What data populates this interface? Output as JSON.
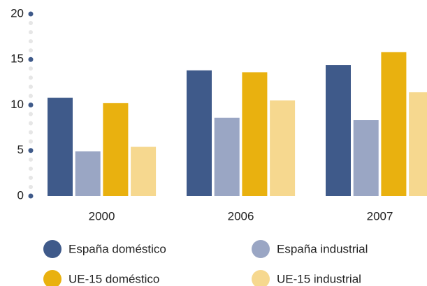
{
  "chart_data": {
    "type": "bar",
    "categories": [
      "2000",
      "2006",
      "2007"
    ],
    "series": [
      {
        "name": "España doméstico",
        "color": "#3f5a8a",
        "values": [
          10.8,
          13.8,
          14.4
        ]
      },
      {
        "name": "España industrial",
        "color": "#9aa6c4",
        "values": [
          4.9,
          8.6,
          8.35
        ]
      },
      {
        "name": "UE-15 doméstico",
        "color": "#e9b10f",
        "values": [
          10.2,
          13.6,
          15.8
        ]
      },
      {
        "name": "UE-15 industrial",
        "color": "#f6d88f",
        "values": [
          5.4,
          10.5,
          11.4
        ]
      }
    ],
    "ylim": [
      0,
      20
    ],
    "yticks": [
      0,
      5,
      10,
      15,
      20
    ],
    "grid": false
  }
}
